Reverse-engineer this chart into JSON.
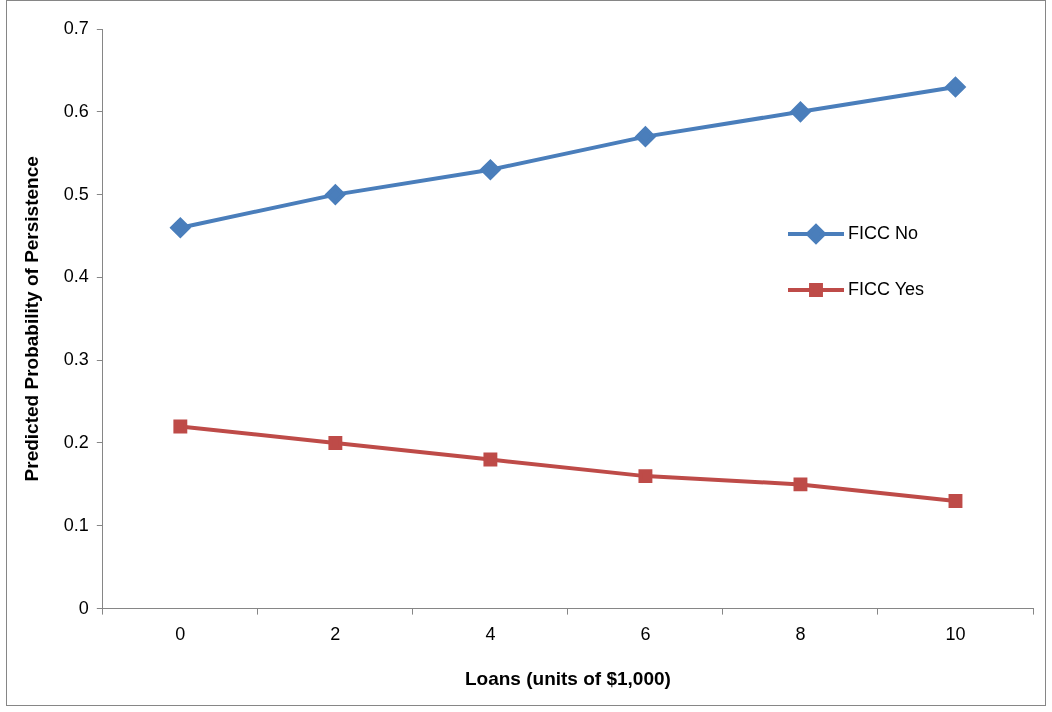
{
  "chart_data": {
    "type": "line",
    "xlabel": "Loans (units of $1,000)",
    "ylabel": "Predicted Probability of Persistence",
    "categories": [
      "0",
      "2",
      "4",
      "6",
      "8",
      "10"
    ],
    "series": [
      {
        "name": "FICC No",
        "color": "#4a7ebb",
        "marker": "diamond",
        "values": [
          0.46,
          0.5,
          0.53,
          0.57,
          0.6,
          0.63
        ]
      },
      {
        "name": "FICC Yes",
        "color": "#be4b48",
        "marker": "square",
        "values": [
          0.22,
          0.2,
          0.18,
          0.16,
          0.15,
          0.13
        ]
      }
    ],
    "ylim": [
      0,
      0.7
    ],
    "yticks": [
      0,
      0.1,
      0.2,
      0.3,
      0.4,
      0.5,
      0.6,
      0.7
    ],
    "grid": false,
    "legend": "right",
    "line_style": "solid"
  }
}
